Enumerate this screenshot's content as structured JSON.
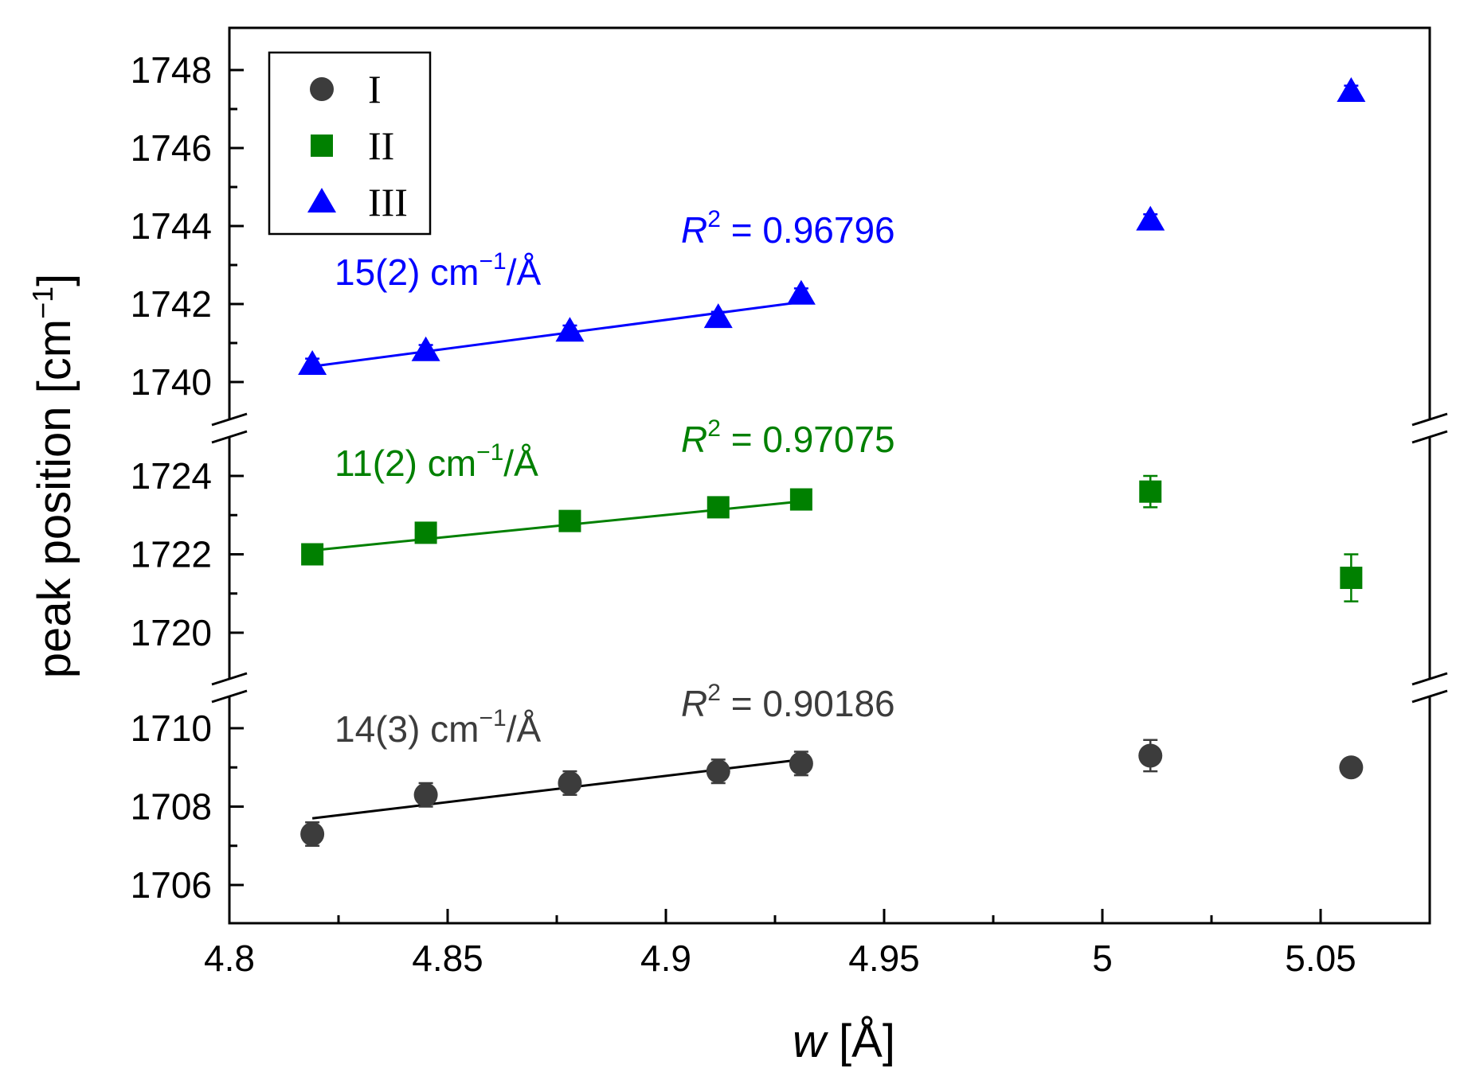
{
  "chart_data": {
    "type": "scatter",
    "xlabel": "w [Å]",
    "xlabel_var": "w",
    "xlabel_unit": "[Å]",
    "ylabel": "peak position [cm−1]",
    "ylabel_main": "peak position [cm",
    "ylabel_sup": "−1",
    "ylabel_close": "]",
    "xlim": [
      4.8,
      5.075
    ],
    "x_ticks": [
      4.8,
      4.85,
      4.9,
      4.95,
      5.0,
      5.05
    ],
    "x_tick_labels": [
      "4.8",
      "4.85",
      "4.9",
      "4.95",
      "5",
      "5.05"
    ],
    "axis_breaks": [
      "between 1710 and 1719",
      "between 1725 and 1739"
    ],
    "segments": [
      {
        "name": "upper",
        "ylim": [
          1739,
          1749
        ],
        "ticks": [
          1740,
          1742,
          1744,
          1746,
          1748
        ]
      },
      {
        "name": "middle",
        "ylim": [
          1719,
          1725
        ],
        "ticks": [
          1720,
          1722,
          1724
        ]
      },
      {
        "name": "lower",
        "ylim": [
          1705,
          1711
        ],
        "ticks": [
          1706,
          1708,
          1710
        ]
      }
    ],
    "legend_position": "top-left",
    "series": [
      {
        "name": "I",
        "marker": "circle",
        "color": "#3c3c3c",
        "segment": "lower",
        "x": [
          4.819,
          4.845,
          4.878,
          4.912,
          4.931,
          5.011,
          5.057
        ],
        "y": [
          1707.3,
          1708.3,
          1708.6,
          1708.9,
          1709.1,
          1709.3,
          1709.0
        ],
        "yerr": [
          0.3,
          0.3,
          0.3,
          0.3,
          0.3,
          0.4,
          0.2
        ],
        "fit": {
          "x": [
            4.819,
            4.931
          ],
          "y": [
            1707.7,
            1709.2
          ],
          "slope_label": "14(3) cm−1/Å",
          "slope_main": "14(3) cm",
          "slope_sup": "−1",
          "slope_tail": "/Å",
          "r2_prefix": "R",
          "r2_sup": "2",
          "r2_value": " = 0.90186"
        }
      },
      {
        "name": "II",
        "marker": "square",
        "color": "#008000",
        "segment": "middle",
        "x": [
          4.819,
          4.845,
          4.878,
          4.912,
          4.931,
          5.011,
          5.057
        ],
        "y": [
          1722.0,
          1722.55,
          1722.85,
          1723.2,
          1723.4,
          1723.6,
          1721.4
        ],
        "yerr": [
          0.25,
          0.25,
          0.25,
          0.25,
          0.25,
          0.4,
          0.6
        ],
        "fit": {
          "x": [
            4.819,
            4.931
          ],
          "y": [
            1722.1,
            1723.35
          ],
          "slope_label": "11(2) cm−1/Å",
          "slope_main": "11(2) cm",
          "slope_sup": "−1",
          "slope_tail": "/Å",
          "r2_prefix": "R",
          "r2_sup": "2",
          "r2_value": " = 0.97075"
        }
      },
      {
        "name": "III",
        "marker": "triangle",
        "color": "#0000ff",
        "segment": "upper",
        "x": [
          4.819,
          4.845,
          4.878,
          4.912,
          4.931,
          5.011,
          5.057
        ],
        "y": [
          1740.45,
          1740.8,
          1741.3,
          1741.65,
          1742.25,
          1744.15,
          1747.45
        ],
        "yerr": [
          0.15,
          0.15,
          0.15,
          0.15,
          0.15,
          0.15,
          0.15
        ],
        "fit": {
          "x": [
            4.819,
            4.931
          ],
          "y": [
            1740.4,
            1742.05
          ],
          "slope_label": "15(2) cm−1/Å",
          "slope_main": "15(2) cm",
          "slope_sup": "−1",
          "slope_tail": "/Å",
          "r2_prefix": "R",
          "r2_sup": "2",
          "r2_value": " = 0.96796"
        }
      }
    ]
  }
}
